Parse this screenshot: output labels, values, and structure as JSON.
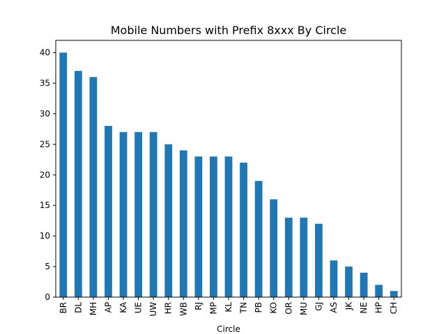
{
  "chart_data": {
    "type": "bar",
    "title": "Mobile Numbers with Prefix 8xxx By Circle",
    "xlabel": "Circle",
    "ylabel": "",
    "categories": [
      "BR",
      "DL",
      "MH",
      "AP",
      "KA",
      "UE",
      "UW",
      "HR",
      "WB",
      "RJ",
      "MP",
      "KL",
      "TN",
      "PB",
      "KO",
      "OR",
      "MU",
      "GJ",
      "AS",
      "JK",
      "NE",
      "HP",
      "CH"
    ],
    "values": [
      40,
      37,
      36,
      28,
      27,
      27,
      27,
      25,
      24,
      23,
      23,
      23,
      22,
      19,
      16,
      13,
      13,
      12,
      6,
      5,
      4,
      2,
      1
    ],
    "ylim": [
      0,
      42
    ],
    "yticks": [
      0,
      5,
      10,
      15,
      20,
      25,
      30,
      35,
      40
    ],
    "bar_color": "#1f77b4",
    "grid": false,
    "legend": "none"
  }
}
